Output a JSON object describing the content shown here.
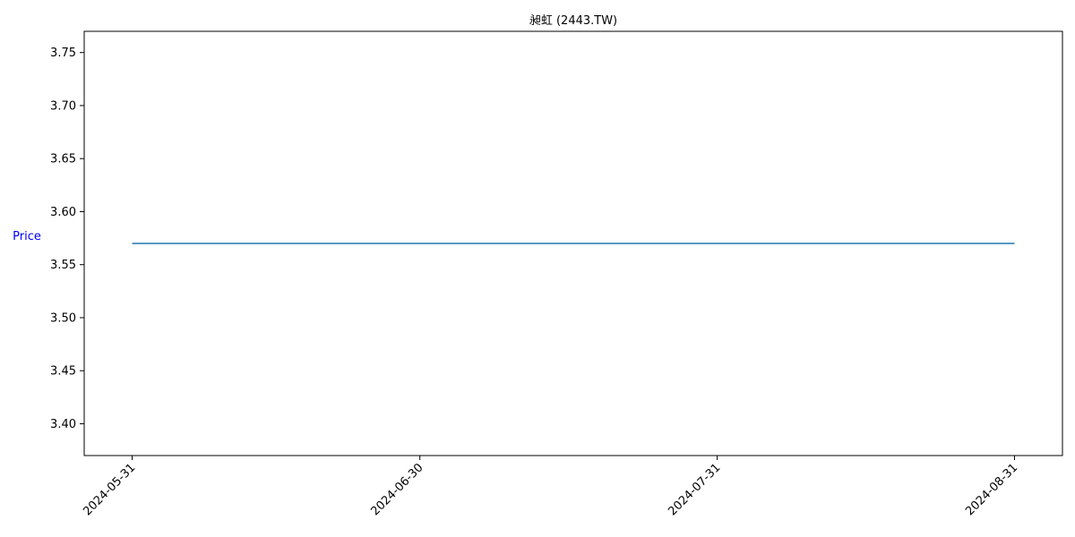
{
  "chart_data": {
    "type": "line",
    "title": "昶虹 (2443.TW)",
    "xlabel": "",
    "ylabel": "Price",
    "ylabel_color": "#0000ff",
    "line_color": "#1f77b4",
    "x_ticks": [
      "2024-05-31",
      "2024-06-30",
      "2024-07-31",
      "2024-08-31"
    ],
    "y_ticks": [
      "3.40",
      "3.45",
      "3.50",
      "3.55",
      "3.60",
      "3.65",
      "3.70",
      "3.75"
    ],
    "xlim": [
      "2024-05-26",
      "2024-09-05"
    ],
    "ylim": [
      3.37,
      3.77
    ],
    "grid": false,
    "legend": "none",
    "series": [
      {
        "x": [
          "2024-05-31",
          "2024-08-31"
        ],
        "values": [
          3.57,
          3.57
        ]
      }
    ]
  }
}
